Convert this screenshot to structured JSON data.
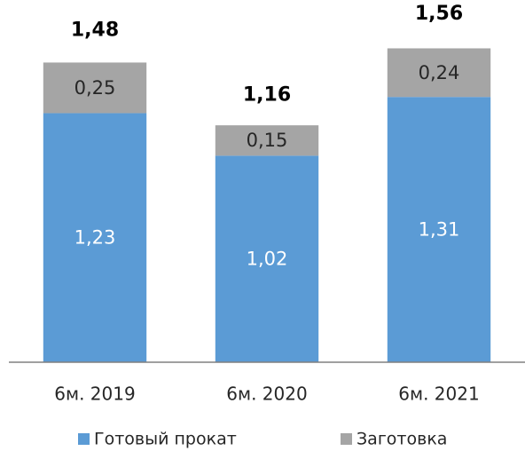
{
  "chart_data": {
    "type": "bar",
    "stacked": true,
    "categories": [
      "6м. 2019",
      "6м. 2020",
      "6м. 2021"
    ],
    "series": [
      {
        "name": "Готовый прокат",
        "color": "#5b9bd5",
        "values": [
          1.23,
          1.02,
          1.31
        ],
        "value_labels": [
          "1,23",
          "1,02",
          "1,31"
        ]
      },
      {
        "name": "Заготовка",
        "color": "#a5a5a5",
        "values": [
          0.25,
          0.15,
          0.24
        ],
        "value_labels": [
          "0,25",
          "0,15",
          "0,24"
        ]
      }
    ],
    "totals": [
      1.48,
      1.16,
      1.56
    ],
    "total_labels": [
      "1,48",
      "1,16",
      "1,56"
    ],
    "ylim": [
      0,
      1.78
    ]
  }
}
